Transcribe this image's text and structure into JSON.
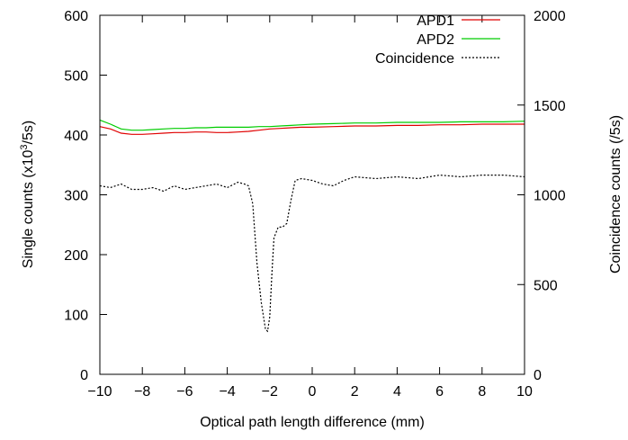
{
  "chart_data": {
    "type": "line",
    "xlabel": "Optical path length difference (mm)",
    "ylabel_left": "Single counts (x10^3/5s)",
    "ylabel_right": "Coincidence counts (/5s)",
    "xlim": [
      -10,
      10
    ],
    "ylim_left": [
      0,
      600
    ],
    "ylim_right": [
      0,
      2000
    ],
    "x_ticks": [
      "−10",
      "−8",
      "−6",
      "−4",
      "−2",
      "0",
      "2",
      "4",
      "6",
      "8",
      "10"
    ],
    "y_left_ticks": [
      "0",
      "100",
      "200",
      "300",
      "400",
      "500",
      "600"
    ],
    "y_right_ticks": [
      "0",
      "500",
      "1000",
      "1500",
      "2000"
    ],
    "legend_position": "top-right",
    "grid": false,
    "series": [
      {
        "name": "APD1",
        "axis": "left",
        "color": "#e00000",
        "dash": "solid",
        "x": [
          -10,
          -9.5,
          -9,
          -8.5,
          -8,
          -7.5,
          -7,
          -6.5,
          -6,
          -5.5,
          -5,
          -4.5,
          -4,
          -3.5,
          -3,
          -2.5,
          -2,
          -1.5,
          -1,
          -0.5,
          0,
          1,
          2,
          3,
          4,
          5,
          6,
          7,
          8,
          9,
          10
        ],
        "values": [
          414,
          410,
          403,
          401,
          401,
          402,
          403,
          404,
          404,
          405,
          405,
          404,
          404,
          405,
          406,
          408,
          410,
          411,
          412,
          413,
          413,
          414,
          415,
          415,
          416,
          416,
          417,
          417,
          418,
          418,
          418
        ]
      },
      {
        "name": "APD2",
        "axis": "left",
        "color": "#00cc00",
        "dash": "solid",
        "x": [
          -10,
          -9.5,
          -9,
          -8.5,
          -8,
          -7.5,
          -7,
          -6.5,
          -6,
          -5.5,
          -5,
          -4.5,
          -4,
          -3.5,
          -3,
          -2.5,
          -2,
          -1.5,
          -1,
          -0.5,
          0,
          1,
          2,
          3,
          4,
          5,
          6,
          7,
          8,
          9,
          10
        ],
        "values": [
          425,
          418,
          410,
          408,
          408,
          409,
          410,
          411,
          411,
          412,
          412,
          413,
          413,
          413,
          413,
          414,
          414,
          415,
          416,
          417,
          418,
          419,
          420,
          420,
          421,
          421,
          421,
          422,
          422,
          422,
          423
        ]
      },
      {
        "name": "Coincidence",
        "axis": "right",
        "color": "#000000",
        "dash": "dotted",
        "x": [
          -10,
          -9.5,
          -9,
          -8.5,
          -8,
          -7.5,
          -7,
          -6.5,
          -6,
          -5.5,
          -5,
          -4.5,
          -4,
          -3.5,
          -3.2,
          -3,
          -2.8,
          -2.6,
          -2.4,
          -2.2,
          -2.1,
          -2,
          -1.9,
          -1.8,
          -1.6,
          -1.4,
          -1.2,
          -1,
          -0.8,
          -0.5,
          0,
          0.5,
          1,
          1.5,
          2,
          3,
          4,
          5,
          6,
          7,
          8,
          9,
          10
        ],
        "values": [
          1050,
          1040,
          1060,
          1030,
          1030,
          1040,
          1020,
          1050,
          1030,
          1040,
          1050,
          1060,
          1040,
          1070,
          1060,
          1050,
          950,
          620,
          400,
          250,
          240,
          320,
          560,
          760,
          820,
          820,
          840,
          970,
          1080,
          1090,
          1080,
          1060,
          1050,
          1080,
          1100,
          1090,
          1100,
          1090,
          1110,
          1100,
          1110,
          1110,
          1100
        ]
      }
    ]
  }
}
